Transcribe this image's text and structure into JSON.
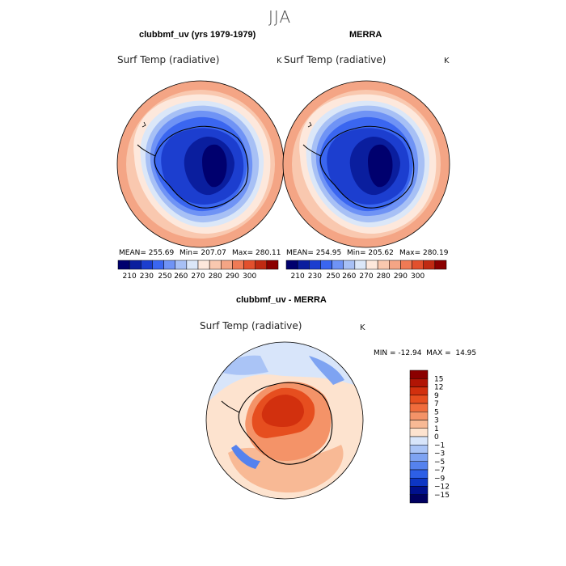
{
  "figure": {
    "season": "JJA"
  },
  "panels": [
    {
      "title": "clubbmf_uv (yrs 1979-1979)",
      "variable": "Surf Temp (radiative)",
      "unit": "K",
      "mean_label": "MEAN= 255.69",
      "min_label": "Min= 207.07",
      "max_label": "Max= 280.11",
      "stats": {
        "mean": 255.69,
        "min": 207.07,
        "max": 280.11
      }
    },
    {
      "title": "MERRA",
      "variable": "Surf Temp (radiative)",
      "unit": "K",
      "mean_label": "MEAN= 254.95",
      "min_label": "Min= 205.62",
      "max_label": "Max= 280.19",
      "stats": {
        "mean": 254.95,
        "min": 205.62,
        "max": 280.19
      }
    },
    {
      "title": "clubbmf_uv - MERRA",
      "variable": "Surf Temp (radiative)",
      "unit": "K",
      "minmax_label": "MIN = -12.94  MAX =  14.95",
      "stats": {
        "min": -12.94,
        "max": 14.95
      }
    }
  ],
  "colorbar_abs": {
    "tick_labels": [
      "210",
      "230",
      "250",
      "260",
      "270",
      "280",
      "290",
      "300"
    ],
    "colors": [
      "#00006e",
      "#0a1e9e",
      "#1c3ecf",
      "#3a66f0",
      "#6f93f5",
      "#a7c0f5",
      "#dbe7f8",
      "#fde8dc",
      "#f9c8af",
      "#f4a585",
      "#ef7a55",
      "#e2502d",
      "#c02a12",
      "#8b0000"
    ]
  },
  "colorbar_diff": {
    "tick_labels": [
      "15",
      "12",
      "9",
      "7",
      "5",
      "3",
      "1",
      "0",
      "−1",
      "−3",
      "−5",
      "−7",
      "−9",
      "−12",
      "−15"
    ],
    "colors": [
      "#8b0000",
      "#b11505",
      "#d2300e",
      "#e64e1f",
      "#f06c3c",
      "#f49368",
      "#f8b995",
      "#fde3cf",
      "#d8e5fa",
      "#aac4f6",
      "#7ea3f2",
      "#5582ee",
      "#2d5fe6",
      "#0d36c4",
      "#00108d",
      "#000060"
    ]
  },
  "colors": {
    "ocean_warm": "#f4a585",
    "ice_cold": "#1c3ecf",
    "coastline": "#000000"
  }
}
